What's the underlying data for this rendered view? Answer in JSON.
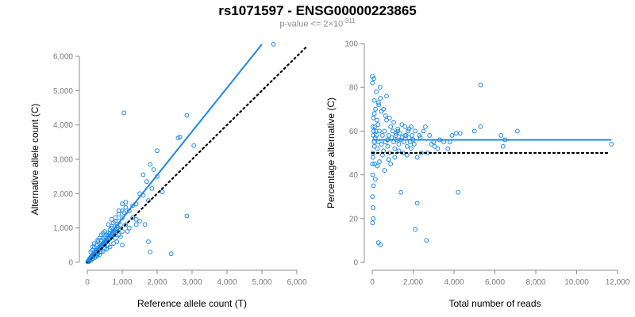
{
  "figure": {
    "title": "rs1071597 - ENSG00000223865",
    "subtitle_prefix": "p-value <= 2×10",
    "subtitle_exponent": "-311"
  },
  "colors": {
    "points": "#1e88e5",
    "fit": "#1e88e5",
    "reference": "#000000",
    "axis": "#8c8c8c"
  },
  "chart_data": [
    {
      "type": "scatter",
      "xlabel": "Reference allele count (T)",
      "ylabel": "Alternative allele count (C)",
      "xlim": [
        0,
        6000
      ],
      "ylim": [
        0,
        6000
      ],
      "xticks": [
        0,
        1000,
        2000,
        3000,
        4000,
        5000,
        6000
      ],
      "xtick_labels": [
        "0",
        "1,000",
        "2,000",
        "3,000",
        "4,000",
        "5,000",
        "6,000"
      ],
      "yticks": [
        0,
        1000,
        2000,
        3000,
        4000,
        5000,
        6000
      ],
      "yticks_labels": [
        "0",
        "1,000",
        "2,000",
        "3,000",
        "4,000",
        "5,000",
        "6,000"
      ],
      "fit_line": {
        "x": [
          0,
          5000
        ],
        "y": [
          0,
          6350
        ]
      },
      "reference_line": {
        "x": [
          0,
          6300
        ],
        "y": [
          0,
          6300
        ]
      },
      "points": [
        [
          5330,
          6350
        ],
        [
          2850,
          4280
        ],
        [
          1050,
          4350
        ],
        [
          2650,
          3650
        ],
        [
          2600,
          3620
        ],
        [
          3050,
          3400
        ],
        [
          2000,
          3250
        ],
        [
          1800,
          2850
        ],
        [
          1900,
          2700
        ],
        [
          1600,
          2550
        ],
        [
          2000,
          2500
        ],
        [
          1700,
          2350
        ],
        [
          2150,
          2050
        ],
        [
          1850,
          2150
        ],
        [
          1500,
          2000
        ],
        [
          1600,
          1950
        ],
        [
          1750,
          1800
        ],
        [
          1400,
          1700
        ],
        [
          1300,
          1650
        ],
        [
          1200,
          1500
        ],
        [
          1100,
          1750
        ],
        [
          1000,
          1700
        ],
        [
          1100,
          1600
        ],
        [
          900,
          1400
        ],
        [
          1000,
          1300
        ],
        [
          800,
          1300
        ],
        [
          900,
          1200
        ],
        [
          750,
          1150
        ],
        [
          1100,
          1100
        ],
        [
          850,
          1050
        ],
        [
          700,
          1000
        ],
        [
          1300,
          1300
        ],
        [
          1500,
          1200
        ],
        [
          800,
          900
        ],
        [
          650,
          850
        ],
        [
          700,
          800
        ],
        [
          600,
          780
        ],
        [
          650,
          700
        ],
        [
          550,
          650
        ],
        [
          500,
          600
        ],
        [
          450,
          550
        ],
        [
          400,
          500
        ],
        [
          350,
          450
        ],
        [
          300,
          400
        ],
        [
          250,
          350
        ],
        [
          200,
          300
        ],
        [
          180,
          250
        ],
        [
          150,
          220
        ],
        [
          120,
          180
        ],
        [
          100,
          150
        ],
        [
          80,
          120
        ],
        [
          60,
          90
        ],
        [
          40,
          60
        ],
        [
          30,
          40
        ],
        [
          20,
          30
        ],
        [
          10,
          15
        ],
        [
          50,
          50
        ],
        [
          70,
          100
        ],
        [
          90,
          130
        ],
        [
          110,
          140
        ],
        [
          130,
          170
        ],
        [
          160,
          200
        ],
        [
          190,
          230
        ],
        [
          220,
          260
        ],
        [
          240,
          300
        ],
        [
          270,
          330
        ],
        [
          300,
          350
        ],
        [
          330,
          380
        ],
        [
          360,
          420
        ],
        [
          380,
          460
        ],
        [
          420,
          500
        ],
        [
          460,
          520
        ],
        [
          480,
          560
        ],
        [
          520,
          600
        ],
        [
          560,
          640
        ],
        [
          600,
          690
        ],
        [
          620,
          720
        ],
        [
          680,
          760
        ],
        [
          720,
          830
        ],
        [
          760,
          880
        ],
        [
          800,
          950
        ],
        [
          850,
          980
        ],
        [
          880,
          1020
        ],
        [
          950,
          1080
        ],
        [
          200,
          450
        ],
        [
          300,
          600
        ],
        [
          250,
          500
        ],
        [
          350,
          550
        ],
        [
          400,
          650
        ],
        [
          150,
          350
        ],
        [
          100,
          300
        ],
        [
          450,
          700
        ],
        [
          500,
          750
        ],
        [
          550,
          800
        ],
        [
          600,
          850
        ],
        [
          650,
          950
        ],
        [
          700,
          1050
        ],
        [
          300,
          250
        ],
        [
          400,
          300
        ],
        [
          500,
          400
        ],
        [
          350,
          300
        ],
        [
          250,
          200
        ],
        [
          600,
          500
        ],
        [
          800,
          700
        ],
        [
          1000,
          900
        ],
        [
          900,
          800
        ],
        [
          1200,
          1000
        ],
        [
          1400,
          1100
        ],
        [
          1000,
          500
        ],
        [
          1750,
          600
        ],
        [
          1800,
          300
        ],
        [
          2400,
          250
        ],
        [
          2850,
          1350
        ],
        [
          1650,
          1100
        ],
        [
          1400,
          1250
        ],
        [
          1150,
          900
        ],
        [
          950,
          750
        ],
        [
          850,
          600
        ],
        [
          750,
          550
        ],
        [
          650,
          450
        ],
        [
          550,
          380
        ],
        [
          450,
          320
        ],
        [
          350,
          220
        ],
        [
          280,
          180
        ],
        [
          220,
          140
        ],
        [
          160,
          110
        ],
        [
          120,
          80
        ],
        [
          80,
          60
        ],
        [
          60,
          30
        ],
        [
          30,
          20
        ],
        [
          140,
          160
        ],
        [
          170,
          190
        ],
        [
          210,
          240
        ],
        [
          260,
          290
        ],
        [
          310,
          330
        ],
        [
          370,
          400
        ],
        [
          430,
          470
        ],
        [
          490,
          530
        ],
        [
          540,
          580
        ],
        [
          590,
          630
        ],
        [
          640,
          680
        ],
        [
          700,
          740
        ],
        [
          760,
          800
        ],
        [
          830,
          870
        ],
        [
          600,
          1100
        ],
        [
          700,
          1250
        ],
        [
          800,
          1200
        ],
        [
          900,
          1500
        ],
        [
          1000,
          1500
        ],
        [
          1050,
          1450
        ],
        [
          500,
          900
        ],
        [
          400,
          800
        ],
        [
          450,
          850
        ],
        [
          350,
          700
        ],
        [
          300,
          650
        ],
        [
          200,
          550
        ],
        [
          150,
          450
        ]
      ]
    },
    {
      "type": "scatter",
      "xlabel": "Total number of reads",
      "ylabel": "Percentage alternative (C)",
      "xlim": [
        0,
        12000
      ],
      "ylim": [
        0,
        100
      ],
      "xticks": [
        0,
        2000,
        4000,
        6000,
        8000,
        10000,
        12000
      ],
      "xtick_labels": [
        "0",
        "2,000",
        "4,000",
        "6,000",
        "8,000",
        "10,000",
        "12,000"
      ],
      "yticks": [
        0,
        20,
        40,
        60,
        80,
        100
      ],
      "ytick_labels": [
        "0",
        "20",
        "40",
        "60",
        "80",
        "100"
      ],
      "fit_line": {
        "x": [
          0,
          11700
        ],
        "y": [
          56,
          56
        ]
      },
      "reference_line": {
        "x": [
          0,
          11500
        ],
        "y": [
          50,
          50
        ]
      },
      "points": [
        [
          11700,
          54
        ],
        [
          7100,
          60
        ],
        [
          6300,
          58
        ],
        [
          6400,
          53
        ],
        [
          6500,
          56
        ],
        [
          5300,
          81
        ],
        [
          5300,
          62
        ],
        [
          5000,
          60
        ],
        [
          4300,
          59
        ],
        [
          4200,
          32
        ],
        [
          4100,
          59
        ],
        [
          3900,
          58
        ],
        [
          3800,
          55
        ],
        [
          3700,
          52
        ],
        [
          3300,
          56
        ],
        [
          3200,
          52
        ],
        [
          3050,
          53
        ],
        [
          3000,
          55
        ],
        [
          2800,
          58
        ],
        [
          2700,
          50
        ],
        [
          2650,
          10
        ],
        [
          2600,
          62
        ],
        [
          2500,
          60
        ],
        [
          2400,
          50
        ],
        [
          2300,
          58
        ],
        [
          2200,
          27
        ],
        [
          2100,
          15
        ],
        [
          2050,
          54
        ],
        [
          2000,
          56
        ],
        [
          1950,
          58
        ],
        [
          1900,
          52
        ],
        [
          1850,
          55
        ],
        [
          1800,
          57
        ],
        [
          1750,
          60
        ],
        [
          1700,
          53
        ],
        [
          1650,
          58
        ],
        [
          1600,
          62
        ],
        [
          1550,
          55
        ],
        [
          1500,
          50
        ],
        [
          1450,
          57
        ],
        [
          1400,
          56
        ],
        [
          1350,
          59
        ],
        [
          1300,
          54
        ],
        [
          1250,
          60
        ],
        [
          1200,
          56
        ],
        [
          1150,
          58
        ],
        [
          1100,
          52
        ],
        [
          1050,
          55
        ],
        [
          1000,
          60
        ],
        [
          950,
          57
        ],
        [
          900,
          62
        ],
        [
          850,
          50
        ],
        [
          800,
          58
        ],
        [
          750,
          56
        ],
        [
          700,
          65
        ],
        [
          650,
          55
        ],
        [
          600,
          60
        ],
        [
          550,
          70
        ],
        [
          500,
          58
        ],
        [
          450,
          54
        ],
        [
          400,
          75
        ],
        [
          380,
          80
        ],
        [
          350,
          60
        ],
        [
          320,
          72
        ],
        [
          300,
          55
        ],
        [
          280,
          63
        ],
        [
          250,
          52
        ],
        [
          230,
          65
        ],
        [
          200,
          58
        ],
        [
          180,
          60
        ],
        [
          160,
          70
        ],
        [
          150,
          57
        ],
        [
          130,
          62
        ],
        [
          120,
          45
        ],
        [
          110,
          53
        ],
        [
          100,
          68
        ],
        [
          90,
          55
        ],
        [
          80,
          84
        ],
        [
          70,
          60
        ],
        [
          60,
          35
        ],
        [
          50,
          20
        ],
        [
          45,
          58
        ],
        [
          40,
          25
        ],
        [
          35,
          50
        ],
        [
          30,
          48
        ],
        [
          25,
          62
        ],
        [
          20,
          40
        ],
        [
          15,
          18
        ],
        [
          10,
          30
        ],
        [
          8,
          45
        ],
        [
          6,
          85
        ],
        [
          5,
          82
        ],
        [
          400,
          8
        ],
        [
          300,
          9
        ],
        [
          1400,
          32
        ],
        [
          700,
          76
        ],
        [
          900,
          45
        ],
        [
          1100,
          48
        ],
        [
          1300,
          51
        ],
        [
          1700,
          49
        ],
        [
          2200,
          48
        ],
        [
          600,
          42
        ],
        [
          800,
          47
        ],
        [
          500,
          49
        ],
        [
          350,
          46
        ],
        [
          250,
          44
        ],
        [
          150,
          38
        ],
        [
          1900,
          62
        ],
        [
          2100,
          60
        ],
        [
          1600,
          58
        ],
        [
          1450,
          63
        ],
        [
          1250,
          61
        ],
        [
          1050,
          64
        ],
        [
          850,
          66
        ],
        [
          650,
          67
        ],
        [
          450,
          69
        ],
        [
          300,
          73
        ],
        [
          200,
          78
        ],
        [
          100,
          74
        ],
        [
          50,
          66
        ],
        [
          3500,
          55
        ],
        [
          2900,
          54
        ],
        [
          2350,
          57
        ],
        [
          1800,
          61
        ],
        [
          1150,
          59
        ],
        [
          750,
          53
        ],
        [
          550,
          51
        ]
      ]
    }
  ]
}
